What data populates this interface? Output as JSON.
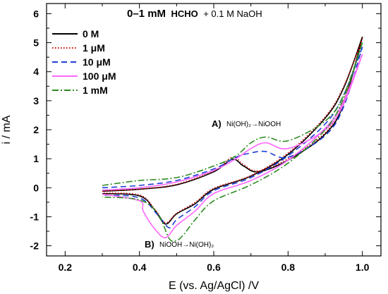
{
  "chart_data": {
    "type": "line",
    "title": {
      "part1": "0–1 mM",
      "part2": "HCHO",
      "part3": "+ 0.1 M NaOH"
    },
    "xlabel": "E (vs. Ag/AgCl) /V",
    "ylabel": "i / mA",
    "xlim": [
      0.15,
      1.05
    ],
    "ylim": [
      -2.35,
      6.35
    ],
    "xticks": [
      0.2,
      0.4,
      0.6,
      0.8,
      1.0
    ],
    "xtick_labels": [
      "0.2",
      "0.4",
      "0.6",
      "0.8",
      "1.0"
    ],
    "yticks": [
      -2,
      -1,
      0,
      1,
      2,
      3,
      4,
      5,
      6
    ],
    "ytick_labels": [
      "-2",
      "-1",
      "0",
      "1",
      "2",
      "3",
      "4",
      "5",
      "6"
    ],
    "legend_position": "top-left",
    "annotations": [
      {
        "label": "A)",
        "text": "Ni(OH)₂→NiOOH"
      },
      {
        "label": "B)",
        "text": "NiOOH→Ni(OH)₂"
      }
    ],
    "series": [
      {
        "name": "0 M",
        "color": "#000000",
        "dash": "solid",
        "forward": [
          [
            0.3,
            -0.12
          ],
          [
            0.4,
            -0.05
          ],
          [
            0.5,
            0.1
          ],
          [
            0.6,
            0.55
          ],
          [
            0.65,
            0.98
          ],
          [
            0.68,
            0.75
          ],
          [
            0.72,
            0.55
          ],
          [
            0.8,
            0.95
          ],
          [
            0.9,
            1.85
          ],
          [
            0.95,
            2.9
          ],
          [
            1.0,
            5.2
          ]
        ],
        "reverse": [
          [
            1.0,
            5.2
          ],
          [
            0.95,
            3.45
          ],
          [
            0.9,
            2.4
          ],
          [
            0.8,
            1.15
          ],
          [
            0.7,
            0.4
          ],
          [
            0.6,
            -0.05
          ],
          [
            0.55,
            -0.55
          ],
          [
            0.5,
            -0.9
          ],
          [
            0.47,
            -1.25
          ],
          [
            0.44,
            -0.75
          ],
          [
            0.4,
            -0.28
          ],
          [
            0.3,
            -0.2
          ]
        ]
      },
      {
        "name": "1 μM",
        "color": "#cc0000",
        "dash": "dotted",
        "forward": [
          [
            0.3,
            -0.12
          ],
          [
            0.4,
            -0.05
          ],
          [
            0.5,
            0.12
          ],
          [
            0.6,
            0.58
          ],
          [
            0.65,
            1.05
          ],
          [
            0.68,
            0.8
          ],
          [
            0.72,
            0.58
          ],
          [
            0.8,
            1.0
          ],
          [
            0.9,
            1.9
          ],
          [
            0.95,
            3.0
          ],
          [
            1.0,
            5.15
          ]
        ],
        "reverse": [
          [
            1.0,
            5.15
          ],
          [
            0.95,
            3.5
          ],
          [
            0.9,
            2.45
          ],
          [
            0.8,
            1.2
          ],
          [
            0.7,
            0.42
          ],
          [
            0.6,
            -0.02
          ],
          [
            0.55,
            -0.5
          ],
          [
            0.5,
            -0.88
          ],
          [
            0.47,
            -1.2
          ],
          [
            0.44,
            -0.72
          ],
          [
            0.4,
            -0.25
          ],
          [
            0.3,
            -0.18
          ]
        ]
      },
      {
        "name": "10 μM",
        "color": "#1f3fd6",
        "dash": "dashed",
        "forward": [
          [
            0.3,
            0.0
          ],
          [
            0.4,
            0.08
          ],
          [
            0.5,
            0.25
          ],
          [
            0.6,
            0.65
          ],
          [
            0.66,
            1.05
          ],
          [
            0.7,
            1.2
          ],
          [
            0.74,
            1.25
          ],
          [
            0.8,
            1.05
          ],
          [
            0.9,
            1.8
          ],
          [
            0.95,
            2.8
          ],
          [
            1.0,
            4.85
          ]
        ],
        "reverse": [
          [
            1.0,
            4.85
          ],
          [
            0.95,
            3.2
          ],
          [
            0.9,
            2.2
          ],
          [
            0.8,
            1.1
          ],
          [
            0.7,
            0.35
          ],
          [
            0.6,
            -0.1
          ],
          [
            0.55,
            -0.65
          ],
          [
            0.5,
            -1.1
          ],
          [
            0.48,
            -1.38
          ],
          [
            0.45,
            -0.95
          ],
          [
            0.4,
            -0.35
          ],
          [
            0.3,
            -0.25
          ]
        ]
      },
      {
        "name": "100 μM",
        "color": "#ff66ff",
        "dash": "solid",
        "forward": [
          [
            0.3,
            -0.08
          ],
          [
            0.4,
            0.0
          ],
          [
            0.5,
            0.2
          ],
          [
            0.6,
            0.6
          ],
          [
            0.66,
            1.0
          ],
          [
            0.7,
            1.35
          ],
          [
            0.74,
            1.55
          ],
          [
            0.8,
            1.35
          ],
          [
            0.9,
            2.0
          ],
          [
            0.95,
            2.9
          ],
          [
            1.0,
            4.6
          ]
        ],
        "reverse": [
          [
            1.0,
            4.6
          ],
          [
            0.95,
            3.0
          ],
          [
            0.9,
            2.05
          ],
          [
            0.8,
            0.95
          ],
          [
            0.7,
            0.25
          ],
          [
            0.6,
            -0.2
          ],
          [
            0.55,
            -0.8
          ],
          [
            0.5,
            -1.3
          ],
          [
            0.47,
            -1.72
          ],
          [
            0.44,
            -1.4
          ],
          [
            0.41,
            -0.8
          ],
          [
            0.4,
            -0.45
          ],
          [
            0.3,
            -0.22
          ]
        ]
      },
      {
        "name": "1 mM",
        "color": "#2e8b22",
        "dash": "dashdot",
        "forward": [
          [
            0.3,
            0.08
          ],
          [
            0.4,
            0.25
          ],
          [
            0.5,
            0.35
          ],
          [
            0.6,
            0.75
          ],
          [
            0.66,
            1.1
          ],
          [
            0.7,
            1.55
          ],
          [
            0.74,
            1.75
          ],
          [
            0.8,
            1.62
          ],
          [
            0.9,
            2.3
          ],
          [
            0.95,
            3.2
          ],
          [
            1.0,
            5.0
          ]
        ],
        "reverse": [
          [
            1.0,
            5.0
          ],
          [
            0.95,
            3.1
          ],
          [
            0.9,
            2.0
          ],
          [
            0.8,
            0.85
          ],
          [
            0.7,
            0.1
          ],
          [
            0.6,
            -0.45
          ],
          [
            0.55,
            -1.1
          ],
          [
            0.52,
            -1.6
          ],
          [
            0.5,
            -1.82
          ],
          [
            0.48,
            -1.75
          ],
          [
            0.45,
            -0.9
          ],
          [
            0.4,
            -0.42
          ],
          [
            0.3,
            -0.32
          ]
        ]
      }
    ]
  }
}
